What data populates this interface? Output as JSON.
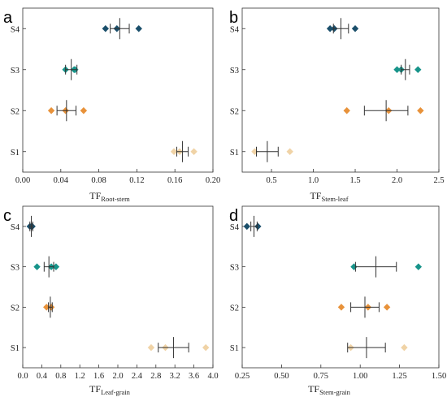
{
  "colors": {
    "S4": "#1b4f6b",
    "S3": "#17948a",
    "S2": "#e8923a",
    "S1": "#f0d3a6",
    "errorbar": "#333333",
    "axis": "#333333"
  },
  "chart_data": [
    {
      "panel": "a",
      "type": "scatter",
      "xlabel_main": "TF",
      "xlabel_sub": "Root-stem",
      "xlim": [
        0,
        0.2
      ],
      "xticks": [
        "0.00",
        "0.04",
        "0.08",
        "0.12",
        "0.16",
        "0.20"
      ],
      "xtick_values": [
        0,
        0.04,
        0.08,
        0.12,
        0.16,
        0.2
      ],
      "categories": [
        "S1",
        "S2",
        "S3",
        "S4"
      ],
      "series": [
        {
          "category": "S4",
          "points": [
            0.087,
            0.099,
            0.122
          ],
          "mean": 0.102,
          "err": 0.01
        },
        {
          "category": "S3",
          "points": [
            0.045,
            0.054,
            0.055
          ],
          "mean": 0.051,
          "err": 0.006
        },
        {
          "category": "S2",
          "points": [
            0.03,
            0.045,
            0.064
          ],
          "mean": 0.046,
          "err": 0.01
        },
        {
          "category": "S1",
          "points": [
            0.159,
            0.165,
            0.18
          ],
          "mean": 0.168,
          "err": 0.006
        }
      ],
      "grid": false
    },
    {
      "panel": "b",
      "type": "scatter",
      "xlabel_main": "TF",
      "xlabel_sub": "Stem-leaf",
      "xlim": [
        0.15,
        2.5
      ],
      "xticks": [
        "0.5",
        "1.0",
        "1.5",
        "2.0",
        "2.5"
      ],
      "xtick_values": [
        0.5,
        1.0,
        1.5,
        2.0,
        2.5
      ],
      "categories": [
        "S1",
        "S2",
        "S3",
        "S4"
      ],
      "series": [
        {
          "category": "S4",
          "points": [
            1.2,
            1.25,
            1.5
          ],
          "mean": 1.33,
          "err": 0.09
        },
        {
          "category": "S3",
          "points": [
            2.0,
            2.05,
            2.25
          ],
          "mean": 2.1,
          "err": 0.05
        },
        {
          "category": "S2",
          "points": [
            1.4,
            1.9,
            2.28
          ],
          "mean": 1.87,
          "err": 0.26
        },
        {
          "category": "S1",
          "points": [
            0.3,
            0.72
          ],
          "mean": 0.45,
          "err": 0.13
        }
      ],
      "grid": false
    },
    {
      "panel": "c",
      "type": "scatter",
      "xlabel_main": "TF",
      "xlabel_sub": "Leaf-grain",
      "xlim": [
        0,
        4.0
      ],
      "xticks": [
        "0.0",
        "0.4",
        "0.8",
        "1.2",
        "1.6",
        "2.0",
        "2.4",
        "2.8",
        "3.2",
        "3.6",
        "4.0"
      ],
      "xtick_values": [
        0,
        0.4,
        0.8,
        1.2,
        1.6,
        2.0,
        2.4,
        2.8,
        3.2,
        3.6,
        4.0
      ],
      "categories": [
        "S1",
        "S2",
        "S3",
        "S4"
      ],
      "series": [
        {
          "category": "S4",
          "points": [
            0.15,
            0.2
          ],
          "mean": 0.18,
          "err": 0.03
        },
        {
          "category": "S3",
          "points": [
            0.3,
            0.6,
            0.7
          ],
          "mean": 0.55,
          "err": 0.1
        },
        {
          "category": "S2",
          "points": [
            0.5,
            0.6
          ],
          "mean": 0.58,
          "err": 0.04
        },
        {
          "category": "S1",
          "points": [
            2.7,
            3.0,
            3.85
          ],
          "mean": 3.17,
          "err": 0.32
        }
      ],
      "grid": false
    },
    {
      "panel": "d",
      "type": "scatter",
      "xlabel_main": "TF",
      "xlabel_sub": "Stem-grain",
      "xlim": [
        0.25,
        1.5
      ],
      "xticks": [
        "0.25",
        "0.50",
        "0.75",
        "1.00",
        "1.25",
        "1.50"
      ],
      "xtick_values": [
        0.25,
        0.5,
        0.75,
        1.0,
        1.25,
        1.5
      ],
      "categories": [
        "S1",
        "S2",
        "S3",
        "S4"
      ],
      "series": [
        {
          "category": "S4",
          "points": [
            0.28,
            0.35
          ],
          "mean": 0.325,
          "err": 0.02
        },
        {
          "category": "S3",
          "points": [
            0.96,
            1.37
          ],
          "mean": 1.1,
          "err": 0.13
        },
        {
          "category": "S2",
          "points": [
            0.88,
            1.05,
            1.17
          ],
          "mean": 1.03,
          "err": 0.09
        },
        {
          "category": "S1",
          "points": [
            0.94,
            1.28
          ],
          "mean": 1.04,
          "err": 0.12
        }
      ],
      "grid": false
    }
  ]
}
